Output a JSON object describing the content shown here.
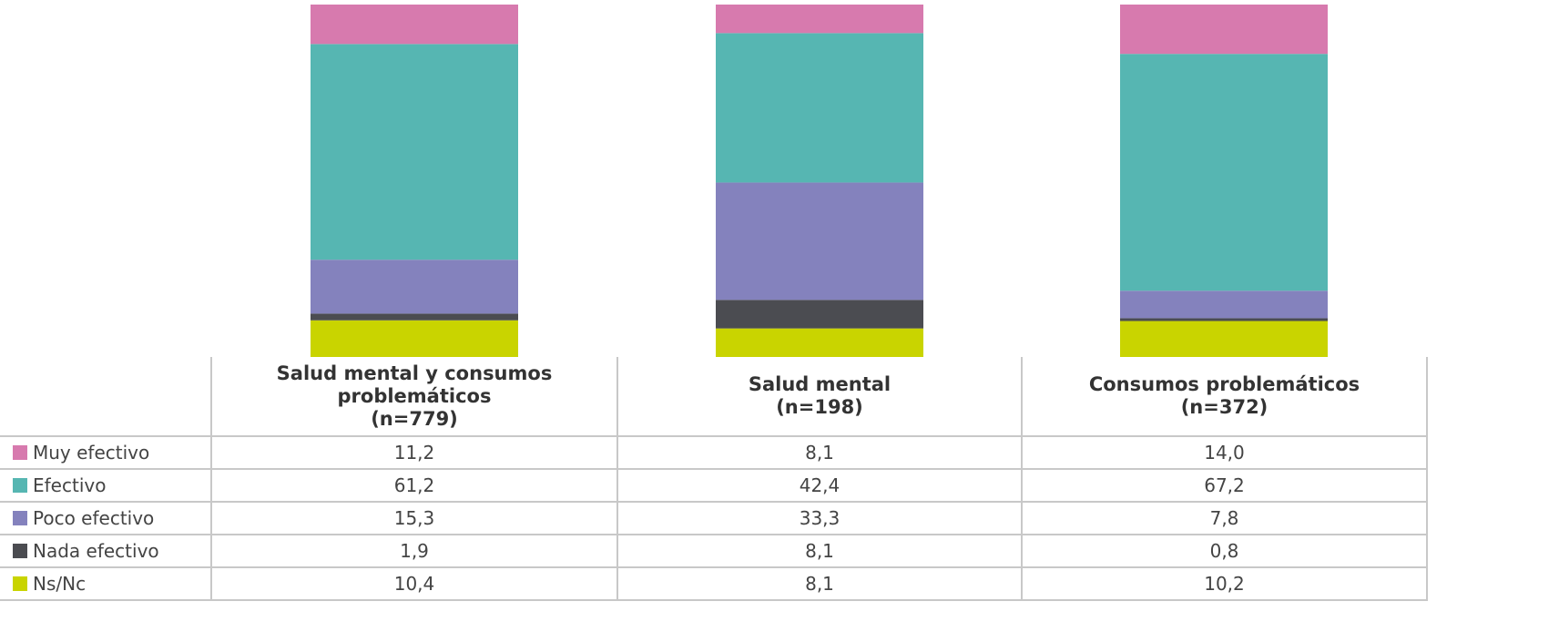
{
  "chart_data": {
    "type": "stacked_bar",
    "categories": [
      "Salud mental y consumos\nproblemáticos\n(n=779)",
      "Salud mental\n(n=198)",
      "Consumos problemáticos\n(n=372)"
    ],
    "series": [
      {
        "name": "Muy efectivo",
        "color": "#d77aae",
        "values": [
          11.2,
          8.1,
          14.0
        ],
        "value_labels": [
          "11,2",
          "8,1",
          "14,0"
        ]
      },
      {
        "name": "Efectivo",
        "color": "#56b6b2",
        "values": [
          61.2,
          42.4,
          67.2
        ],
        "value_labels": [
          "61,2",
          "42,4",
          "67,2"
        ]
      },
      {
        "name": "Poco efectivo",
        "color": "#8482bd",
        "values": [
          15.3,
          33.3,
          7.8
        ],
        "value_labels": [
          "15,3",
          "33,3",
          "7,8"
        ]
      },
      {
        "name": "Nada efectivo",
        "color": "#4b4c51",
        "values": [
          1.9,
          8.1,
          0.8
        ],
        "value_labels": [
          "1,9",
          "8,1",
          "0,8"
        ]
      },
      {
        "name": "Ns/Nc",
        "color": "#c9d400",
        "values": [
          10.4,
          8.1,
          10.2
        ],
        "value_labels": [
          "10,4",
          "8,1",
          "10,2"
        ]
      }
    ]
  }
}
